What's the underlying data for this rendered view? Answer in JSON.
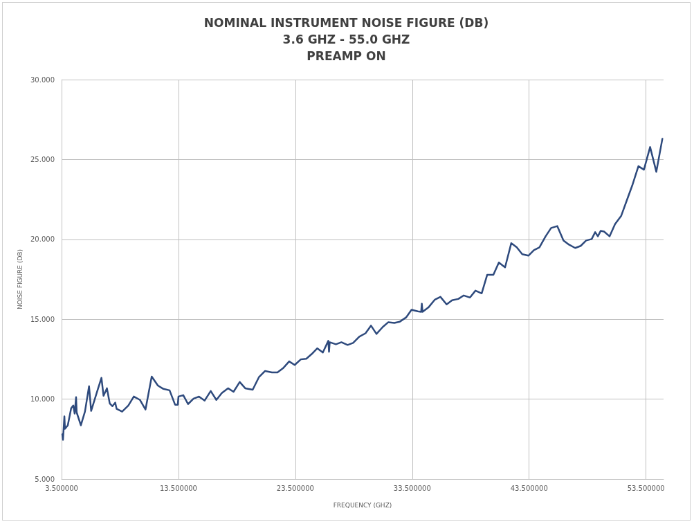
{
  "chart_data": {
    "type": "line",
    "title": "NOMINAL INSTRUMENT NOISE FIGURE (DB)\n3.6 GHZ - 55.0 GHZ\nPREAMP ON",
    "xlabel": "FREQUENCY (GHZ)",
    "ylabel": "NOISE FIGURE (DB)",
    "x": [
      3.56,
      3.62,
      3.74,
      3.79,
      4.03,
      4.32,
      4.5,
      4.62,
      4.74,
      4.79,
      5.15,
      5.5,
      5.85,
      6.03,
      6.5,
      6.91,
      7.09,
      7.38,
      7.62,
      7.85,
      8.09,
      8.21,
      8.68,
      9.21,
      9.68,
      10.21,
      10.68,
      11.21,
      11.74,
      12.21,
      12.74,
      13.21,
      13.44,
      13.5,
      13.91,
      14.32,
      14.79,
      15.26,
      15.74,
      16.26,
      16.74,
      17.21,
      17.74,
      18.21,
      18.74,
      19.21,
      19.85,
      20.38,
      20.91,
      21.5,
      21.97,
      22.44,
      22.97,
      23.44,
      23.97,
      24.44,
      24.91,
      25.38,
      25.85,
      26.32,
      26.38,
      26.44,
      26.97,
      27.44,
      27.97,
      28.44,
      28.97,
      29.5,
      29.97,
      30.44,
      30.97,
      31.44,
      31.97,
      32.44,
      32.97,
      33.44,
      33.97,
      34.26,
      34.32,
      34.38,
      34.91,
      35.44,
      35.91,
      36.44,
      36.91,
      37.44,
      37.91,
      38.44,
      38.91,
      39.44,
      39.91,
      40.44,
      40.91,
      41.44,
      41.97,
      42.44,
      42.91,
      43.44,
      43.91,
      44.38,
      44.91,
      45.38,
      45.91,
      46.44,
      46.91,
      47.44,
      47.91,
      48.38,
      48.85,
      49.15,
      49.38,
      49.62,
      49.91,
      50.38,
      50.85,
      51.38,
      51.85,
      52.32,
      52.85,
      53.32,
      53.85,
      54.38,
      54.9
    ],
    "series": [
      {
        "color": "#2e4a7d",
        "values": [
          7.8,
          7.45,
          8.92,
          8.14,
          8.36,
          9.43,
          9.6,
          9.09,
          10.12,
          9.17,
          8.36,
          9.22,
          10.81,
          9.26,
          10.38,
          11.33,
          10.21,
          10.68,
          9.73,
          9.56,
          9.78,
          9.39,
          9.22,
          9.6,
          10.16,
          9.95,
          9.35,
          11.41,
          10.85,
          10.64,
          10.55,
          9.65,
          9.65,
          10.16,
          10.25,
          9.69,
          10.03,
          10.16,
          9.91,
          10.51,
          9.95,
          10.38,
          10.68,
          10.46,
          11.07,
          10.68,
          10.59,
          11.37,
          11.76,
          11.67,
          11.67,
          11.93,
          12.36,
          12.14,
          12.49,
          12.53,
          12.83,
          13.18,
          12.92,
          13.65,
          12.96,
          13.56,
          13.43,
          13.56,
          13.39,
          13.52,
          13.91,
          14.12,
          14.6,
          14.08,
          14.51,
          14.81,
          14.77,
          14.85,
          15.11,
          15.59,
          15.5,
          15.46,
          15.97,
          15.46,
          15.76,
          16.23,
          16.4,
          15.93,
          16.19,
          16.27,
          16.49,
          16.36,
          16.79,
          16.62,
          17.78,
          17.78,
          18.55,
          18.25,
          19.76,
          19.5,
          19.07,
          18.98,
          19.33,
          19.5,
          20.19,
          20.71,
          20.83,
          19.93,
          19.67,
          19.46,
          19.59,
          19.93,
          20.02,
          20.45,
          20.19,
          20.53,
          20.49,
          20.19,
          20.96,
          21.48,
          22.43,
          23.37,
          24.58,
          24.36,
          25.78,
          24.23,
          26.3
        ]
      }
    ],
    "xlim": [
      3.5,
      55
    ],
    "xticks": [
      {
        "value": 3.5,
        "label": "3.500000"
      },
      {
        "value": 13.5,
        "label": "13.500000"
      },
      {
        "value": 23.5,
        "label": "23.500000"
      },
      {
        "value": 33.5,
        "label": "33.500000"
      },
      {
        "value": 43.5,
        "label": "43.500000"
      },
      {
        "value": 53.5,
        "label": "53.500000"
      }
    ],
    "ylim": [
      5,
      30
    ],
    "yticks": [
      {
        "value": 5,
        "label": "5.000"
      },
      {
        "value": 10,
        "label": "10.000"
      },
      {
        "value": 15,
        "label": "15.000"
      },
      {
        "value": 20,
        "label": "20.000"
      },
      {
        "value": 25,
        "label": "25.000"
      },
      {
        "value": 30,
        "label": "30.000"
      }
    ],
    "grid": true,
    "marker": "none",
    "line_style": "solid"
  }
}
